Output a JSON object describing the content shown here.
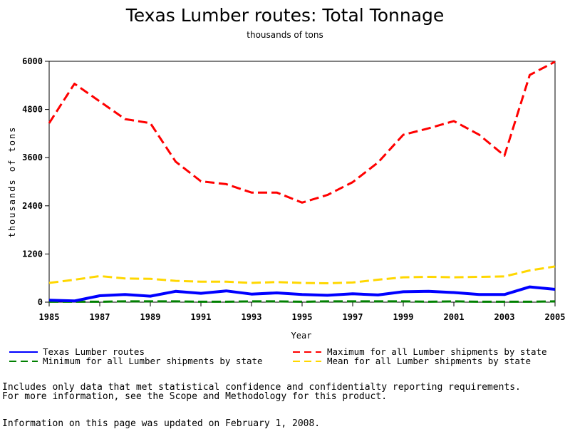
{
  "chart_data": {
    "type": "line",
    "title": "Texas Lumber routes: Total Tonnage",
    "subtitle": "thousands of tons",
    "xlabel": "Year",
    "ylabel": "thousands of tons",
    "xlim": [
      1985,
      2005
    ],
    "ylim": [
      0,
      6000
    ],
    "x_ticks": [
      "1985",
      "1987",
      "1989",
      "1991",
      "1993",
      "1995",
      "1997",
      "1999",
      "2001",
      "2003",
      "2005"
    ],
    "y_ticks": [
      "0",
      "1200",
      "2400",
      "3600",
      "4800",
      "6000"
    ],
    "grid": false,
    "legend_position": "bottom",
    "x": [
      1985,
      1986,
      1987,
      1988,
      1989,
      1990,
      1991,
      1992,
      1993,
      1994,
      1995,
      1996,
      1997,
      1998,
      1999,
      2000,
      2001,
      2002,
      2003,
      2004,
      2005
    ],
    "series": [
      {
        "name": "Texas Lumber routes",
        "color": "#0000ff",
        "dash": "solid",
        "values": [
          50,
          30,
          160,
          190,
          150,
          270,
          220,
          280,
          200,
          230,
          190,
          170,
          210,
          180,
          260,
          270,
          240,
          190,
          190,
          380,
          320
        ]
      },
      {
        "name": "Maximum for all Lumber shipments by state",
        "color": "#ff0000",
        "dash": "dashed",
        "values": [
          4460,
          5440,
          5000,
          4560,
          4460,
          3500,
          3010,
          2940,
          2730,
          2730,
          2480,
          2670,
          2990,
          3480,
          4170,
          4330,
          4510,
          4170,
          3650,
          5660,
          5990
        ]
      },
      {
        "name": "Minimum for all Lumber shipments by state",
        "color": "#008000",
        "dash": "dashed",
        "values": [
          10,
          10,
          10,
          20,
          20,
          20,
          10,
          10,
          20,
          20,
          10,
          20,
          20,
          20,
          20,
          10,
          20,
          10,
          10,
          10,
          20
        ]
      },
      {
        "name": "Mean for all Lumber shipments by state",
        "color": "#ffd700",
        "dash": "dashed",
        "values": [
          480,
          560,
          650,
          590,
          580,
          530,
          510,
          510,
          480,
          500,
          480,
          470,
          490,
          560,
          620,
          630,
          620,
          630,
          640,
          790,
          890
        ]
      }
    ]
  },
  "notes": {
    "line1": "Includes only data that met statistical confidence and confidentialty reporting requirements.",
    "line2": "For more information, see the Scope and Methodology for this product.",
    "updated": "Information on this page was updated on February 1, 2008."
  }
}
